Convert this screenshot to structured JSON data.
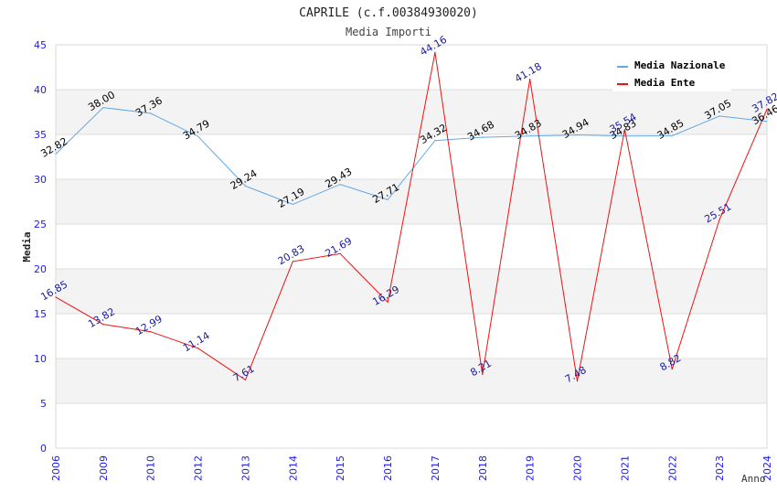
{
  "chart_data": {
    "type": "line",
    "title": "CAPRILE (c.f.00384930020)",
    "subtitle": "Media Importi",
    "xlabel": "Anno",
    "ylabel": "Media",
    "ylim": [
      0,
      45
    ],
    "yticks": [
      "0",
      "5",
      "10",
      "15",
      "20",
      "25",
      "30",
      "35",
      "40",
      "45"
    ],
    "categories": [
      "2006",
      "2009",
      "2010",
      "2012",
      "2013",
      "2014",
      "2015",
      "2016",
      "2017",
      "2018",
      "2019",
      "2020",
      "2021",
      "2022",
      "2023",
      "2024"
    ],
    "grid": true,
    "legend_position": "top-right",
    "series": [
      {
        "name": "Media Nazionale",
        "color": "#64a8e6",
        "values": [
          32.82,
          38.0,
          37.36,
          34.79,
          29.24,
          27.19,
          29.43,
          27.71,
          34.32,
          34.68,
          34.83,
          34.94,
          34.83,
          34.85,
          37.05,
          36.46
        ],
        "labels": [
          "32.82",
          "38.00",
          "37.36",
          "34.79",
          "29.24",
          "27.19",
          "29.43",
          "27.71",
          "34.32",
          "34.68",
          "34.83",
          "34.94",
          "34.83",
          "34.85",
          "37.05",
          "36.46"
        ]
      },
      {
        "name": "Media Ente",
        "color": "#ee1111",
        "values": [
          16.85,
          13.82,
          12.99,
          11.14,
          7.61,
          20.83,
          21.69,
          16.29,
          44.16,
          8.21,
          41.18,
          7.48,
          35.54,
          8.82,
          25.51,
          37.82
        ],
        "labels": [
          "16.85",
          "13.82",
          "12.99",
          "11.14",
          "7.61",
          "20.83",
          "21.69",
          "16.29",
          "44.16",
          "8.21",
          "41.18",
          "7.48",
          "35.54",
          "8.82",
          "25.51",
          "37.82"
        ]
      }
    ]
  }
}
